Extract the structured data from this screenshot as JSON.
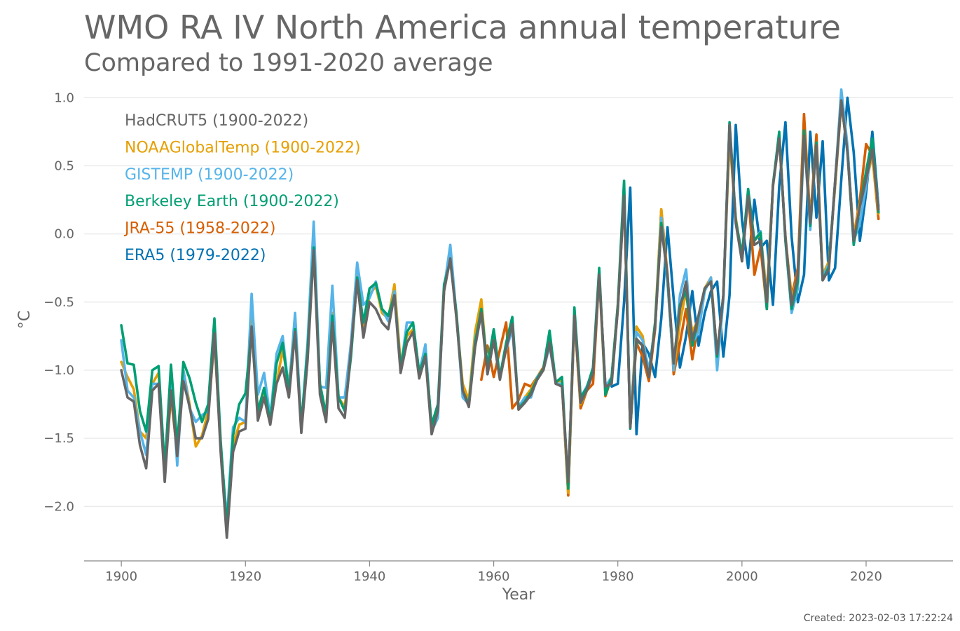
{
  "title": "WMO RA IV North America annual temperature",
  "subtitle": "Compared to 1991-2020 average",
  "created": "Created: 2023-02-03 17:22:24",
  "chart_data": {
    "type": "line",
    "xlabel": "Year",
    "ylabel": "°C",
    "xlim": [
      1894,
      2034
    ],
    "ylim": [
      -2.4,
      1.1
    ],
    "xticks": [
      1900,
      1920,
      1940,
      1960,
      1980,
      2000,
      2020
    ],
    "yticks": [
      -2.0,
      -1.5,
      -1.0,
      -0.5,
      0.0,
      0.5,
      1.0
    ],
    "ytick_labels": [
      "−2.0",
      "−1.5",
      "−1.0",
      "−0.5",
      "0.0",
      "0.5",
      "1.0"
    ],
    "grid": "horizontal",
    "legend_position": "top-left",
    "series": [
      {
        "name": "ERA5 (1979-2022)",
        "color": "#0072b2",
        "start": 1979,
        "values": [
          -1.12,
          -1.1,
          -0.5,
          0.34,
          -1.47,
          -0.8,
          -0.88,
          -1.05,
          -0.62,
          0.05,
          -0.48,
          -0.98,
          -0.75,
          -0.42,
          -0.82,
          -0.58,
          -0.42,
          -0.35,
          -0.9,
          -0.45,
          0.8,
          0.1,
          -0.25,
          0.25,
          -0.1,
          -0.05,
          -0.52,
          0.35,
          0.82,
          -0.02,
          -0.5,
          -0.3,
          0.75,
          0.12,
          0.68,
          -0.34,
          -0.25,
          0.4,
          1.0,
          0.6,
          -0.05,
          0.3,
          0.75,
          0.2
        ]
      },
      {
        "name": "JRA-55 (1958-2022)",
        "color": "#d55e00",
        "start": 1958,
        "values": [
          -1.07,
          -0.82,
          -1.05,
          -0.85,
          -0.65,
          -1.28,
          -1.22,
          -1.1,
          -1.12,
          -1.05,
          -0.98,
          -0.78,
          -1.1,
          -1.1,
          -1.92,
          -0.6,
          -1.28,
          -1.15,
          -1.1,
          -0.3,
          -1.19,
          -1.05,
          -0.55,
          0.3,
          -1.42,
          -0.8,
          -0.9,
          -1.08,
          -0.7,
          0.18,
          -0.3,
          -1.03,
          -0.8,
          -0.55,
          -0.92,
          -0.65,
          -0.4,
          -0.32,
          -0.9,
          -0.45,
          0.75,
          0.1,
          -0.2,
          0.3,
          -0.3,
          -0.1,
          -0.55,
          0.36,
          0.72,
          -0.04,
          -0.46,
          -0.25,
          0.88,
          0.1,
          0.73,
          -0.32,
          -0.2,
          0.35,
          0.96,
          0.62,
          -0.02,
          0.25,
          0.66,
          0.58,
          0.11
        ]
      },
      {
        "name": "NOAAGlobalTemp (1900-2022)",
        "color": "#e69f00",
        "start": 1900,
        "values": [
          -0.94,
          -1.05,
          -1.14,
          -1.45,
          -1.5,
          -1.1,
          -1.02,
          -1.75,
          -1.2,
          -1.6,
          -1.0,
          -1.25,
          -1.56,
          -1.48,
          -1.3,
          -0.78,
          -1.55,
          -2.12,
          -1.55,
          -1.4,
          -1.38,
          -0.56,
          -1.32,
          -1.15,
          -1.35,
          -1.1,
          -0.85,
          -1.1,
          -0.68,
          -1.42,
          -0.85,
          -0.05,
          -1.15,
          -1.32,
          -0.58,
          -1.2,
          -1.27,
          -0.85,
          -0.3,
          -0.72,
          -0.45,
          -0.38,
          -0.58,
          -0.62,
          -0.37,
          -0.95,
          -0.75,
          -0.7,
          -1.02,
          -0.85,
          -1.42,
          -1.3,
          -0.42,
          -0.16,
          -0.62,
          -1.1,
          -1.22,
          -0.72,
          -0.48,
          -1.02,
          -0.72,
          -1.05,
          -0.85,
          -0.65,
          -1.28,
          -1.2,
          -1.14,
          -1.05,
          -1.0,
          -0.82,
          -1.08,
          -1.08,
          -1.9,
          -0.62,
          -1.25,
          -1.15,
          -1.0,
          -0.28,
          -1.15,
          -1.05,
          -0.52,
          0.3,
          -1.4,
          -0.68,
          -0.75,
          -1.05,
          -0.65,
          0.18,
          -0.35,
          -1.0,
          -0.65,
          -0.42,
          -0.72,
          -0.62,
          -0.4,
          -0.32,
          -0.95,
          -0.45,
          0.7,
          0.12,
          -0.18,
          0.28,
          -0.05,
          0.0,
          -0.45,
          0.36,
          0.72,
          -0.02,
          -0.48,
          -0.3,
          0.75,
          0.1,
          0.66,
          -0.3,
          -0.2,
          0.35,
          1.02,
          0.62,
          -0.02,
          0.22,
          0.38,
          0.58,
          0.15
        ]
      },
      {
        "name": "GISTEMP (1900-2022)",
        "color": "#56b4e9",
        "start": 1900,
        "values": [
          -0.78,
          -1.15,
          -1.2,
          -1.45,
          -1.62,
          -1.1,
          -1.1,
          -1.75,
          -0.98,
          -1.7,
          -1.0,
          -1.28,
          -1.38,
          -1.33,
          -1.3,
          -0.75,
          -1.55,
          -2.1,
          -1.42,
          -1.35,
          -1.38,
          -0.44,
          -1.18,
          -1.02,
          -1.35,
          -0.88,
          -0.75,
          -1.15,
          -0.58,
          -1.42,
          -0.8,
          0.09,
          -1.12,
          -1.13,
          -0.38,
          -1.2,
          -1.2,
          -0.8,
          -0.21,
          -0.52,
          -0.47,
          -0.35,
          -0.55,
          -0.64,
          -0.42,
          -1.0,
          -0.65,
          -0.65,
          -1.02,
          -0.81,
          -1.45,
          -1.35,
          -0.4,
          -0.08,
          -0.6,
          -1.2,
          -1.25,
          -0.78,
          -0.58,
          -1.0,
          -0.78,
          -1.05,
          -0.85,
          -0.7,
          -1.27,
          -1.2,
          -1.2,
          -1.05,
          -1.0,
          -0.82,
          -1.1,
          -1.1,
          -1.85,
          -0.6,
          -1.2,
          -1.12,
          -1.0,
          -0.3,
          -1.12,
          -1.05,
          -0.55,
          0.35,
          -1.4,
          -0.72,
          -0.78,
          -1.0,
          -0.68,
          0.12,
          -0.35,
          -1.0,
          -0.45,
          -0.26,
          -0.8,
          -0.72,
          -0.42,
          -0.32,
          -1.0,
          -0.48,
          0.8,
          0.1,
          -0.2,
          0.27,
          -0.05,
          0.02,
          -0.52,
          0.36,
          0.73,
          -0.05,
          -0.58,
          -0.4,
          0.72,
          0.03,
          0.67,
          -0.32,
          -0.22,
          0.38,
          1.06,
          0.65,
          -0.05,
          0.08,
          0.35,
          0.65,
          0.2
        ]
      },
      {
        "name": "Berkeley Earth (1900-2022)",
        "color": "#009e73",
        "start": 1900,
        "values": [
          -0.67,
          -0.95,
          -0.96,
          -1.3,
          -1.45,
          -1.0,
          -0.97,
          -1.72,
          -0.96,
          -1.55,
          -0.94,
          -1.06,
          -1.24,
          -1.38,
          -1.25,
          -0.62,
          -1.52,
          -2.15,
          -1.48,
          -1.25,
          -1.17,
          -0.7,
          -1.3,
          -1.13,
          -1.38,
          -0.95,
          -0.8,
          -1.16,
          -0.7,
          -1.4,
          -0.85,
          -0.1,
          -1.1,
          -1.33,
          -0.6,
          -1.2,
          -1.3,
          -0.9,
          -0.32,
          -0.65,
          -0.4,
          -0.36,
          -0.55,
          -0.6,
          -0.45,
          -0.98,
          -0.72,
          -0.65,
          -1.02,
          -0.88,
          -1.4,
          -1.25,
          -0.37,
          -0.2,
          -0.58,
          -1.15,
          -1.25,
          -0.8,
          -0.55,
          -0.97,
          -0.7,
          -1.05,
          -0.8,
          -0.61,
          -1.28,
          -1.23,
          -1.16,
          -1.06,
          -0.99,
          -0.71,
          -1.09,
          -1.05,
          -1.87,
          -0.54,
          -1.2,
          -1.13,
          -0.98,
          -0.25,
          -1.18,
          -1.05,
          -0.52,
          0.39,
          -1.43,
          -0.78,
          -0.82,
          -1.05,
          -0.65,
          0.08,
          -0.32,
          -0.95,
          -0.52,
          -0.42,
          -0.82,
          -0.6,
          -0.4,
          -0.35,
          -0.9,
          -0.45,
          0.82,
          0.1,
          -0.15,
          0.33,
          -0.05,
          0.01,
          -0.55,
          0.36,
          0.75,
          -0.05,
          -0.55,
          -0.35,
          0.76,
          0.06,
          0.67,
          -0.34,
          -0.24,
          0.38,
          0.98,
          0.6,
          -0.08,
          0.2,
          0.46,
          0.7,
          0.16
        ]
      },
      {
        "name": "HadCRUT5 (1900-2022)",
        "color": "#666666",
        "start": 1900,
        "values": [
          -1.0,
          -1.2,
          -1.23,
          -1.55,
          -1.72,
          -1.15,
          -1.1,
          -1.82,
          -1.15,
          -1.63,
          -1.08,
          -1.27,
          -1.5,
          -1.5,
          -1.36,
          -0.73,
          -1.6,
          -2.23,
          -1.6,
          -1.45,
          -1.43,
          -0.68,
          -1.37,
          -1.2,
          -1.4,
          -1.1,
          -0.98,
          -1.2,
          -0.72,
          -1.46,
          -0.93,
          -0.12,
          -1.18,
          -1.38,
          -0.65,
          -1.28,
          -1.35,
          -0.85,
          -0.34,
          -0.76,
          -0.5,
          -0.55,
          -0.65,
          -0.7,
          -0.45,
          -1.02,
          -0.8,
          -0.72,
          -1.06,
          -0.9,
          -1.47,
          -1.3,
          -0.42,
          -0.18,
          -0.62,
          -1.15,
          -1.27,
          -0.83,
          -0.58,
          -1.03,
          -0.78,
          -1.07,
          -0.84,
          -0.66,
          -1.29,
          -1.24,
          -1.18,
          -1.07,
          -1.0,
          -0.8,
          -1.1,
          -1.12,
          -1.82,
          -0.6,
          -1.24,
          -1.15,
          -1.02,
          -0.3,
          -1.12,
          -1.1,
          -0.55,
          0.28,
          -1.42,
          -0.77,
          -0.82,
          -1.05,
          -0.68,
          0.05,
          -0.3,
          -0.95,
          -0.55,
          -0.35,
          -0.78,
          -0.6,
          -0.4,
          -0.35,
          -0.88,
          -0.45,
          0.8,
          0.08,
          -0.2,
          0.28,
          -0.08,
          -0.05,
          -0.5,
          0.35,
          0.7,
          -0.02,
          -0.52,
          -0.3,
          0.72,
          0.08,
          0.65,
          -0.34,
          -0.26,
          0.38,
          0.98,
          0.6,
          -0.05,
          0.2,
          0.4,
          0.62,
          0.18
        ]
      }
    ]
  }
}
